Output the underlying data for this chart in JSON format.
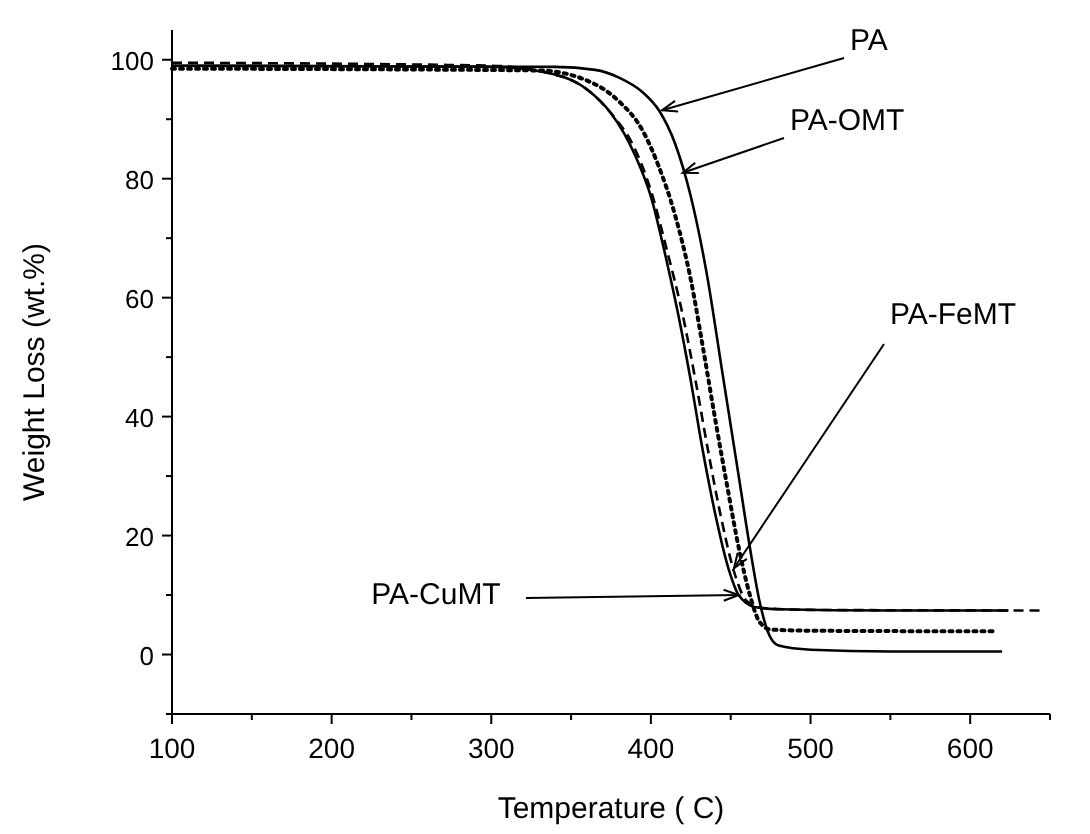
{
  "chart_data": {
    "type": "line",
    "xlabel": "Temperature ( C)",
    "ylabel": "Weight Loss (wt.%)",
    "xlim": [
      100,
      650
    ],
    "xticks": [
      100,
      {
        "value": 150,
        "label": null
      },
      200,
      {
        "value": 250,
        "label": null
      },
      300,
      {
        "value": 350,
        "label": null
      },
      400,
      {
        "value": 450,
        "label": null
      },
      500,
      {
        "value": 550,
        "label": null
      },
      600,
      {
        "value": 650,
        "label": null
      }
    ],
    "ylim": [
      -10,
      105
    ],
    "yticks": [
      {
        "value": -10,
        "label": null
      },
      0,
      {
        "value": 10,
        "label": null
      },
      20,
      {
        "value": 30,
        "label": null
      },
      40,
      {
        "value": 50,
        "label": null
      },
      60,
      {
        "value": 70,
        "label": null
      },
      80,
      {
        "value": 90,
        "label": null
      },
      100
    ],
    "grid": false,
    "series": [
      {
        "color": "#000000",
        "line_style": "solid",
        "x": [
          100,
          340,
          365,
          380,
          395,
          405,
          415,
          425,
          435,
          445,
          455,
          462,
          468,
          473,
          480,
          500,
          550,
          620
        ],
        "values": [
          99,
          98.8,
          98.3,
          97,
          94.5,
          91.5,
          86,
          77,
          64,
          47,
          30,
          18,
          9,
          4,
          1.5,
          0.8,
          0.5,
          0.5
        ]
      },
      {
        "color": "#000000",
        "line_style": "dotted",
        "x": [
          100,
          330,
          360,
          380,
          395,
          405,
          415,
          425,
          433,
          440,
          448,
          455,
          462,
          468,
          475,
          500,
          617
        ],
        "values": [
          98.5,
          98.2,
          96.5,
          93,
          88,
          82,
          74,
          63,
          51,
          40,
          28,
          18,
          10,
          5.5,
          4.2,
          4,
          3.9
        ]
      },
      {
        "color": "#000000",
        "line_style": "dashed",
        "x": [
          100,
          300,
          340,
          360,
          375,
          390,
          400,
          410,
          420,
          428,
          436,
          444,
          452,
          460,
          470,
          500,
          645
        ],
        "values": [
          99.5,
          99,
          97.5,
          95,
          91,
          85,
          78,
          68,
          57,
          46,
          34,
          23,
          14,
          9,
          7.8,
          7.5,
          7.4
        ]
      },
      {
        "color": "#000000",
        "line_style": "solid",
        "x": [
          100,
          300,
          340,
          360,
          375,
          390,
          400,
          410,
          418,
          425,
          432,
          440,
          448,
          455,
          465,
          480,
          550,
          624
        ],
        "values": [
          99,
          98.8,
          97.5,
          95,
          91,
          84,
          77,
          66,
          56,
          46,
          35,
          24,
          15,
          10,
          8,
          7.6,
          7.4,
          7.4
        ]
      }
    ],
    "annotations": [
      {
        "text": "PA",
        "x": 407,
        "y": 91.5
      },
      {
        "text": "PA-OMT",
        "x": 420,
        "y": 81
      },
      {
        "text": "PA-FeMT",
        "x": 452,
        "y": 14.5
      },
      {
        "text": "PA-CuMT",
        "x": 455,
        "y": 10
      }
    ]
  }
}
